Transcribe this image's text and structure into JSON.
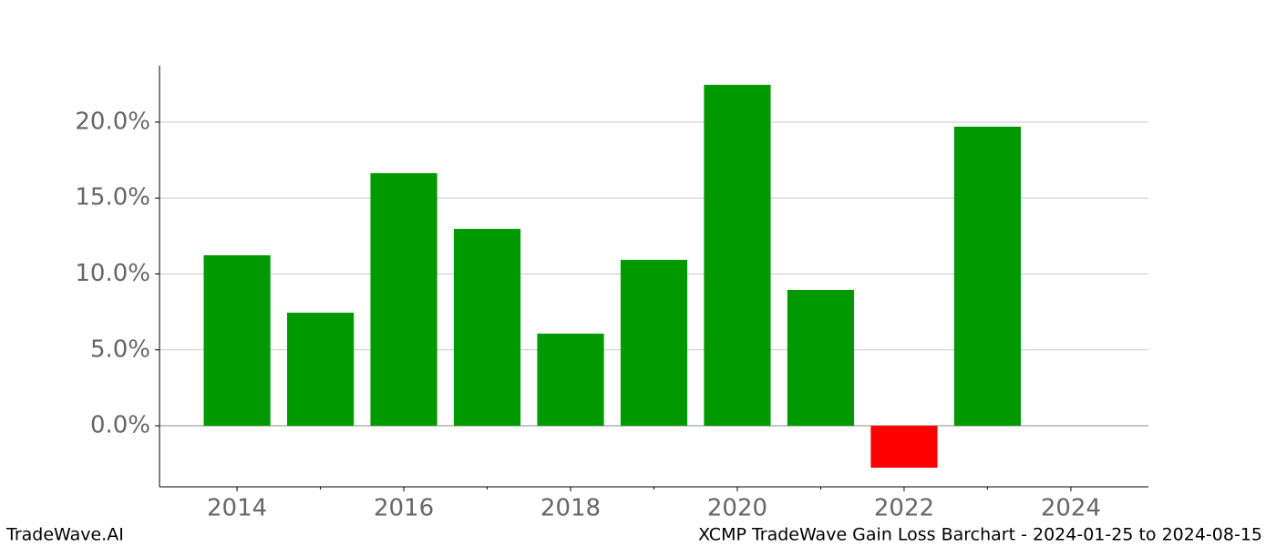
{
  "chart_data": {
    "type": "bar",
    "x": [
      2014,
      2015,
      2016,
      2017,
      2018,
      2019,
      2020,
      2021,
      2022,
      2023
    ],
    "series": [
      {
        "values": [
          11.23,
          7.45,
          16.64,
          12.97,
          6.07,
          10.93,
          22.46,
          8.95,
          -2.76,
          19.7
        ]
      }
    ],
    "positive_color": "#009900",
    "negative_color": "#ff0000",
    "xlim": [
      2013.07,
      2024.93
    ],
    "xticks": [
      2014,
      2016,
      2018,
      2020,
      2022,
      2024
    ],
    "xminorticks": [
      2015,
      2017,
      2019,
      2021,
      2023
    ],
    "ylim": [
      -4.02,
      23.72
    ],
    "yticks": [
      {
        "value": 0,
        "label": "0.0%"
      },
      {
        "value": 5,
        "label": "5.0%"
      },
      {
        "value": 10,
        "label": "10.0%"
      },
      {
        "value": 15,
        "label": "15.0%"
      },
      {
        "value": 20,
        "label": "20.0%"
      }
    ],
    "grid": true,
    "footer_left": "TradeWave.AI",
    "footer_right": "XCMP TradeWave Gain Loss Barchart - 2024-01-25 to 2024-08-15"
  }
}
